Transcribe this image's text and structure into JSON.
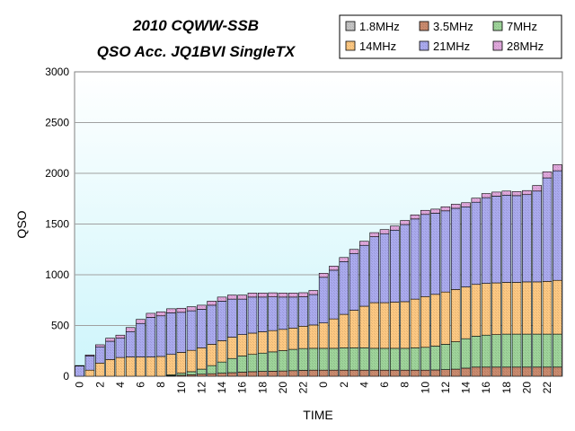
{
  "chart_data": {
    "type": "bar",
    "stacked": true,
    "title_line1": "2010 CQWW-SSB",
    "title_line2": "QSO Acc.  JQ1BVI  SingleTX",
    "xlabel": "TIME",
    "ylabel": "QSO",
    "ylim": [
      0,
      3000
    ],
    "yticks": [
      0,
      500,
      1000,
      1500,
      2000,
      2500,
      3000
    ],
    "xtick_labels": [
      "0",
      "2",
      "4",
      "6",
      "8",
      "10",
      "12",
      "14",
      "16",
      "18",
      "20",
      "22",
      "0",
      "2",
      "4",
      "6",
      "8",
      "10",
      "12",
      "14",
      "16",
      "18",
      "20",
      "22"
    ],
    "legend_placement": "top-right",
    "plot_background": [
      "#ffffff",
      "#cdf5fb"
    ],
    "series": [
      {
        "name": "1.8MHz",
        "color": "#c4c4c4",
        "values": [
          0,
          0,
          0,
          0,
          0,
          0,
          0,
          0,
          0,
          0,
          0,
          0,
          0,
          0,
          0,
          0,
          0,
          0,
          0,
          0,
          0,
          0,
          0,
          0,
          0,
          0,
          0,
          0,
          0,
          0,
          0,
          0,
          0,
          0,
          0,
          0,
          0,
          0,
          0,
          0,
          0,
          0,
          0,
          0,
          0,
          0,
          0,
          0
        ]
      },
      {
        "name": "3.5MHz",
        "color": "#c98a6e",
        "values": [
          0,
          0,
          0,
          0,
          0,
          0,
          0,
          0,
          0,
          5,
          10,
          15,
          20,
          25,
          30,
          35,
          40,
          45,
          48,
          50,
          52,
          55,
          58,
          60,
          60,
          60,
          60,
          60,
          60,
          60,
          60,
          60,
          60,
          60,
          60,
          62,
          65,
          70,
          80,
          90,
          90,
          90,
          90,
          90,
          90,
          90,
          90,
          90
        ]
      },
      {
        "name": "7MHz",
        "color": "#9ed49a",
        "values": [
          0,
          0,
          0,
          0,
          0,
          0,
          0,
          0,
          0,
          10,
          20,
          30,
          50,
          80,
          110,
          140,
          160,
          170,
          180,
          190,
          200,
          210,
          215,
          215,
          215,
          215,
          220,
          220,
          220,
          215,
          215,
          215,
          215,
          220,
          225,
          235,
          250,
          270,
          290,
          305,
          315,
          320,
          325,
          325,
          325,
          325,
          325,
          325
        ]
      },
      {
        "name": "14MHz",
        "color": "#fdc882",
        "values": [
          0,
          60,
          130,
          165,
          185,
          190,
          190,
          190,
          195,
          200,
          205,
          210,
          210,
          210,
          210,
          210,
          210,
          210,
          210,
          210,
          210,
          210,
          220,
          230,
          250,
          290,
          330,
          370,
          410,
          450,
          450,
          455,
          460,
          480,
          500,
          510,
          515,
          515,
          510,
          510,
          510,
          510,
          510,
          510,
          515,
          515,
          520,
          530
        ]
      },
      {
        "name": "21MHz",
        "color": "#aaaaee",
        "values": [
          100,
          140,
          160,
          180,
          190,
          250,
          330,
          390,
          400,
          410,
          395,
          390,
          380,
          385,
          390,
          375,
          350,
          355,
          342,
          332,
          318,
          305,
          290,
          300,
          450,
          480,
          520,
          560,
          600,
          650,
          680,
          710,
          760,
          790,
          810,
          800,
          800,
          800,
          790,
          810,
          845,
          855,
          860,
          855,
          860,
          895,
          1020,
          1080
        ]
      },
      {
        "name": "28MHz",
        "color": "#e0a8dc",
        "values": [
          5,
          10,
          20,
          30,
          30,
          40,
          40,
          40,
          40,
          40,
          40,
          40,
          40,
          40,
          40,
          40,
          40,
          40,
          40,
          40,
          40,
          40,
          40,
          40,
          40,
          40,
          40,
          40,
          40,
          40,
          40,
          40,
          40,
          40,
          40,
          40,
          40,
          40,
          40,
          40,
          40,
          40,
          40,
          40,
          40,
          55,
          60,
          60
        ]
      }
    ]
  }
}
